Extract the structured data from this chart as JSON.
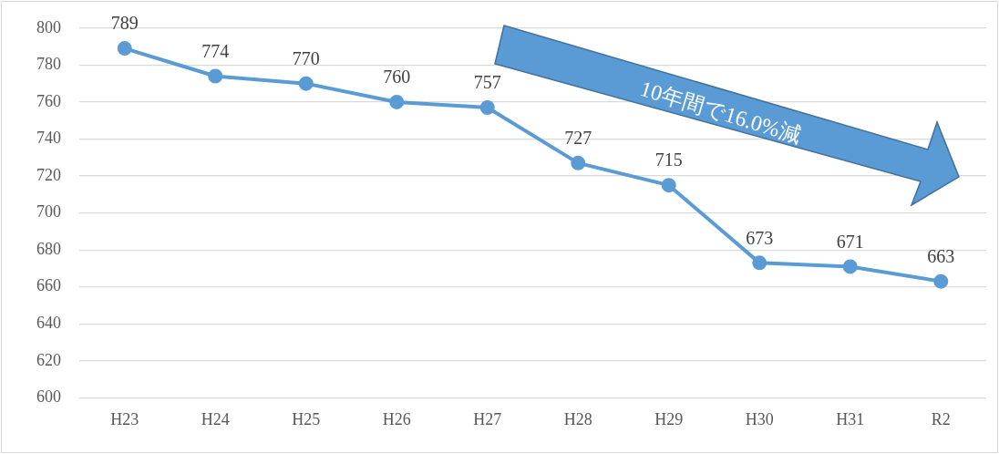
{
  "chart_data": {
    "type": "line",
    "categories": [
      "H23",
      "H24",
      "H25",
      "H26",
      "H27",
      "H28",
      "H29",
      "H30",
      "H31",
      "R2"
    ],
    "series": [
      {
        "color": "#5b9bd5",
        "values": [
          789,
          774,
          770,
          760,
          757,
          727,
          715,
          673,
          671,
          663
        ]
      }
    ],
    "ylim": [
      600,
      800
    ],
    "yticks": [
      600,
      620,
      640,
      660,
      680,
      700,
      720,
      740,
      760,
      780,
      800
    ],
    "grid": "y",
    "legend": false,
    "marker": "circle",
    "line_style": "solid",
    "data_labels": true,
    "annotations": [
      "10年間で16.0%減"
    ]
  }
}
